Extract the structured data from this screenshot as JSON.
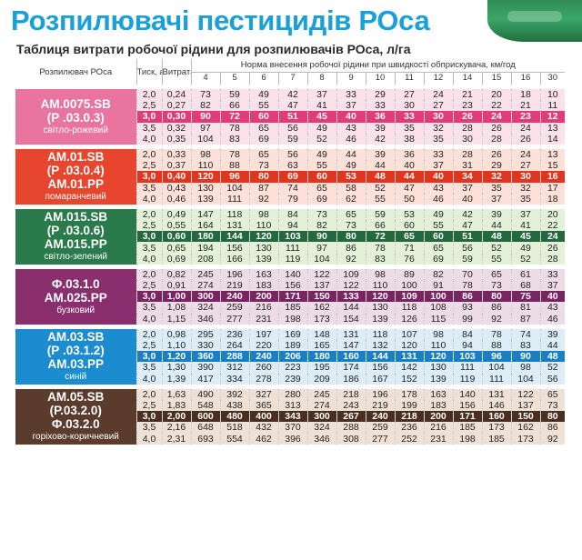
{
  "title": "Розпилювачі пестицидів РОса",
  "subtitle": "Таблиця витрати робочої рідини для розпилювачів РОса, л/га",
  "headers": {
    "nozzle": "Розпилювач РОса",
    "pressure": "Тиск, атм",
    "flow": "Витрата, л/хв",
    "rate_group": "Норма внесення робочої рідини при швидкості обприскувача, км/год",
    "speeds": [
      "4",
      "5",
      "6",
      "7",
      "8",
      "9",
      "10",
      "11",
      "12",
      "14",
      "15",
      "16",
      "30"
    ]
  },
  "groups": [
    {
      "codes": [
        "АМ.0075.SB",
        "(Р .03.0.3)"
      ],
      "color_name": "світло-рожевий",
      "label_bg": "#e8749f",
      "row_bg": "#fbe1ea",
      "hl_bg": "#e23c78",
      "rows": [
        {
          "pressure": "2,0",
          "flow": "0,24",
          "values": [
            "73",
            "59",
            "49",
            "42",
            "37",
            "33",
            "29",
            "27",
            "24",
            "21",
            "20",
            "18",
            "10"
          ]
        },
        {
          "pressure": "2,5",
          "flow": "0,27",
          "values": [
            "82",
            "66",
            "55",
            "47",
            "41",
            "37",
            "33",
            "30",
            "27",
            "23",
            "22",
            "21",
            "11"
          ]
        },
        {
          "pressure": "3,0",
          "flow": "0,30",
          "values": [
            "90",
            "72",
            "60",
            "51",
            "45",
            "40",
            "36",
            "33",
            "30",
            "26",
            "24",
            "23",
            "12"
          ],
          "hl": true
        },
        {
          "pressure": "3,5",
          "flow": "0,32",
          "values": [
            "97",
            "78",
            "65",
            "56",
            "49",
            "43",
            "39",
            "35",
            "32",
            "28",
            "26",
            "24",
            "13"
          ]
        },
        {
          "pressure": "4,0",
          "flow": "0,35",
          "values": [
            "104",
            "83",
            "69",
            "59",
            "52",
            "46",
            "42",
            "38",
            "35",
            "30",
            "28",
            "26",
            "14"
          ]
        }
      ]
    },
    {
      "codes": [
        "АМ.01.SB",
        "(Р .03.0.4)",
        "АМ.01.РР"
      ],
      "color_name": "помаранчевий",
      "label_bg": "#e8452f",
      "row_bg": "#fde0d8",
      "hl_bg": "#e2351f",
      "rows": [
        {
          "pressure": "2,0",
          "flow": "0,33",
          "values": [
            "98",
            "78",
            "65",
            "56",
            "49",
            "44",
            "39",
            "36",
            "33",
            "28",
            "26",
            "24",
            "13"
          ]
        },
        {
          "pressure": "2,5",
          "flow": "0,37",
          "values": [
            "110",
            "88",
            "73",
            "63",
            "55",
            "49",
            "44",
            "40",
            "37",
            "31",
            "29",
            "27",
            "15"
          ]
        },
        {
          "pressure": "3,0",
          "flow": "0,40",
          "values": [
            "120",
            "96",
            "80",
            "69",
            "60",
            "53",
            "48",
            "44",
            "40",
            "34",
            "32",
            "30",
            "16"
          ],
          "hl": true
        },
        {
          "pressure": "3,5",
          "flow": "0,43",
          "values": [
            "130",
            "104",
            "87",
            "74",
            "65",
            "58",
            "52",
            "47",
            "43",
            "37",
            "35",
            "32",
            "17"
          ]
        },
        {
          "pressure": "4,0",
          "flow": "0,46",
          "values": [
            "139",
            "111",
            "92",
            "79",
            "69",
            "62",
            "55",
            "50",
            "46",
            "40",
            "37",
            "35",
            "18"
          ]
        }
      ]
    },
    {
      "codes": [
        "АМ.015.SB",
        "(Р .03.0.6)",
        "АМ.015.РР"
      ],
      "color_name": "світло-зелений",
      "label_bg": "#2a7a4b",
      "row_bg": "#e2f1d8",
      "hl_bg": "#23683f",
      "rows": [
        {
          "pressure": "2,0",
          "flow": "0,49",
          "values": [
            "147",
            "118",
            "98",
            "84",
            "73",
            "65",
            "59",
            "53",
            "49",
            "42",
            "39",
            "37",
            "20"
          ]
        },
        {
          "pressure": "2,5",
          "flow": "0,55",
          "values": [
            "164",
            "131",
            "110",
            "94",
            "82",
            "73",
            "66",
            "60",
            "55",
            "47",
            "44",
            "41",
            "22"
          ]
        },
        {
          "pressure": "3,0",
          "flow": "0,60",
          "values": [
            "180",
            "144",
            "120",
            "103",
            "90",
            "80",
            "72",
            "65",
            "60",
            "51",
            "48",
            "45",
            "24"
          ],
          "hl": true
        },
        {
          "pressure": "3,5",
          "flow": "0,65",
          "values": [
            "194",
            "156",
            "130",
            "111",
            "97",
            "86",
            "78",
            "71",
            "65",
            "56",
            "52",
            "49",
            "26"
          ]
        },
        {
          "pressure": "4,0",
          "flow": "0,69",
          "values": [
            "208",
            "166",
            "139",
            "119",
            "104",
            "92",
            "83",
            "76",
            "69",
            "59",
            "55",
            "52",
            "28"
          ]
        }
      ]
    },
    {
      "codes": [
        "Ф.03.1.0",
        "АМ.025.РР"
      ],
      "color_name": "бузковий",
      "label_bg": "#8a2f6e",
      "row_bg": "#eedbe8",
      "hl_bg": "#7b2462",
      "rows": [
        {
          "pressure": "2,0",
          "flow": "0,82",
          "values": [
            "245",
            "196",
            "163",
            "140",
            "122",
            "109",
            "98",
            "89",
            "82",
            "70",
            "65",
            "61",
            "33"
          ]
        },
        {
          "pressure": "2,5",
          "flow": "0,91",
          "values": [
            "274",
            "219",
            "183",
            "156",
            "137",
            "122",
            "110",
            "100",
            "91",
            "78",
            "73",
            "68",
            "37"
          ]
        },
        {
          "pressure": "3,0",
          "flow": "1,00",
          "values": [
            "300",
            "240",
            "200",
            "171",
            "150",
            "133",
            "120",
            "109",
            "100",
            "86",
            "80",
            "75",
            "40"
          ],
          "hl": true
        },
        {
          "pressure": "3,5",
          "flow": "1,08",
          "values": [
            "324",
            "259",
            "216",
            "185",
            "162",
            "144",
            "130",
            "118",
            "108",
            "93",
            "86",
            "81",
            "43"
          ]
        },
        {
          "pressure": "4,0",
          "flow": "1,15",
          "values": [
            "346",
            "277",
            "231",
            "198",
            "173",
            "154",
            "139",
            "126",
            "115",
            "99",
            "92",
            "87",
            "46"
          ]
        }
      ]
    },
    {
      "codes": [
        "АМ.03.SB",
        "(Р .03.1.2)",
        "АМ.03.РР"
      ],
      "color_name": "синій",
      "label_bg": "#1c8cd0",
      "row_bg": "#dcedf8",
      "hl_bg": "#187fc2",
      "rows": [
        {
          "pressure": "2,0",
          "flow": "0,98",
          "values": [
            "295",
            "236",
            "197",
            "169",
            "148",
            "131",
            "118",
            "107",
            "98",
            "84",
            "78",
            "74",
            "39"
          ]
        },
        {
          "pressure": "2,5",
          "flow": "1,10",
          "values": [
            "330",
            "264",
            "220",
            "189",
            "165",
            "147",
            "132",
            "120",
            "110",
            "94",
            "88",
            "83",
            "44"
          ]
        },
        {
          "pressure": "3,0",
          "flow": "1,20",
          "values": [
            "360",
            "288",
            "240",
            "206",
            "180",
            "160",
            "144",
            "131",
            "120",
            "103",
            "96",
            "90",
            "48"
          ],
          "hl": true
        },
        {
          "pressure": "3,5",
          "flow": "1,30",
          "values": [
            "390",
            "312",
            "260",
            "223",
            "195",
            "174",
            "156",
            "142",
            "130",
            "111",
            "104",
            "98",
            "52"
          ]
        },
        {
          "pressure": "4,0",
          "flow": "1,39",
          "values": [
            "417",
            "334",
            "278",
            "239",
            "209",
            "186",
            "167",
            "152",
            "139",
            "119",
            "111",
            "104",
            "56"
          ]
        }
      ]
    },
    {
      "codes": [
        "АМ.05.SB",
        "(Р.03.2.0)",
        "Ф.03.2.0"
      ],
      "color_name": "горіхово-коричневий",
      "label_bg": "#5a3b2c",
      "row_bg": "#f0e1d6",
      "hl_bg": "#4a2e20",
      "rows": [
        {
          "pressure": "2,0",
          "flow": "1,63",
          "values": [
            "490",
            "392",
            "327",
            "280",
            "245",
            "218",
            "196",
            "178",
            "163",
            "140",
            "131",
            "122",
            "65"
          ]
        },
        {
          "pressure": "2,5",
          "flow": "1,83",
          "values": [
            "548",
            "438",
            "365",
            "313",
            "274",
            "243",
            "219",
            "199",
            "183",
            "156",
            "146",
            "137",
            "73"
          ]
        },
        {
          "pressure": "3,0",
          "flow": "2,00",
          "values": [
            "600",
            "480",
            "400",
            "343",
            "300",
            "267",
            "240",
            "218",
            "200",
            "171",
            "160",
            "150",
            "80"
          ],
          "hl": true
        },
        {
          "pressure": "3,5",
          "flow": "2,16",
          "values": [
            "648",
            "518",
            "432",
            "370",
            "324",
            "288",
            "259",
            "236",
            "216",
            "185",
            "173",
            "162",
            "86"
          ]
        },
        {
          "pressure": "4,0",
          "flow": "2,31",
          "values": [
            "693",
            "554",
            "462",
            "396",
            "346",
            "308",
            "277",
            "252",
            "231",
            "198",
            "185",
            "173",
            "92"
          ]
        }
      ]
    }
  ]
}
